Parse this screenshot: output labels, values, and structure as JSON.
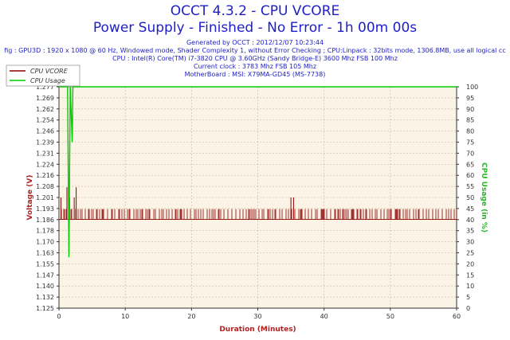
{
  "header": {
    "title": "OCCT 4.3.2 - CPU VCORE",
    "subtitle": "Power Supply - Finished - No Error - 1h 00m 00s",
    "info_lines": [
      "Generated by OCCT : 2012/12/07 10:23:44",
      "fig : GPU3D : 1920 x 1080 @ 60 Hz, Windowed mode, Shader Complexity 1, without Error Checking ; CPU:Linpack : 32bits mode, 1306.8MB, use all logical cc",
      "CPU : Intel(R) Core(TM) i7-3820 CPU @ 3.60GHz (Sandy Bridge-E) 3600 Mhz FSB 100 Mhz",
      "Current clock : 3783 Mhz FSB 105 Mhz",
      "MotherBoard : MSI: X79MA-GD45 (MS-7738)"
    ]
  },
  "colors": {
    "title": "#1e1ec8",
    "vcore": "#8b0000",
    "usage": "#00cc00",
    "plot_bg": "#faf3e6",
    "axis_label": "#b22222",
    "usage_label": "#22bb22"
  },
  "chart_data": {
    "type": "line",
    "xlabel": "Duration (Minutes)",
    "ylabel_left": "Voltage (V)",
    "ylabel_right": "CPU Usage (in %)",
    "xlim": [
      0,
      60
    ],
    "ylim_left": [
      1.125,
      1.277
    ],
    "ylim_right": [
      0,
      100
    ],
    "x_ticks": [
      "0",
      "10",
      "20",
      "30",
      "40",
      "50",
      "60"
    ],
    "y_left_ticks": [
      "1.125",
      "1.132",
      "1.140",
      "1.147",
      "1.155",
      "1.163",
      "1.170",
      "1.178",
      "1.186",
      "1.193",
      "1.201",
      "1.208",
      "1.216",
      "1.224",
      "1.231",
      "1.239",
      "1.246",
      "1.254",
      "1.262",
      "1.269",
      "1.277"
    ],
    "y_right_ticks": [
      "0",
      "5",
      "10",
      "15",
      "20",
      "25",
      "30",
      "35",
      "40",
      "45",
      "50",
      "55",
      "60",
      "65",
      "70",
      "75",
      "80",
      "85",
      "90",
      "95",
      "100"
    ],
    "grid": true,
    "legend_position": "top-left",
    "series": [
      {
        "name": "CPU VCORE",
        "baseline": 1.186,
        "high": 1.193,
        "spikes": [
          {
            "x": 0.3,
            "y": 1.201
          },
          {
            "x": 1.2,
            "y": 1.208
          },
          {
            "x": 1.6,
            "y": 1.201
          },
          {
            "x": 2.3,
            "y": 1.201
          },
          {
            "x": 2.6,
            "y": 1.208
          },
          {
            "x": 35.0,
            "y": 1.201
          },
          {
            "x": 35.4,
            "y": 1.201
          }
        ]
      },
      {
        "name": "CPU Usage",
        "values": [
          [
            0,
            100
          ],
          [
            1.3,
            100
          ],
          [
            1.5,
            23
          ],
          [
            1.7,
            100
          ],
          [
            2.0,
            75
          ],
          [
            2.1,
            100
          ],
          [
            2.3,
            100
          ],
          [
            60,
            100
          ]
        ]
      }
    ]
  }
}
